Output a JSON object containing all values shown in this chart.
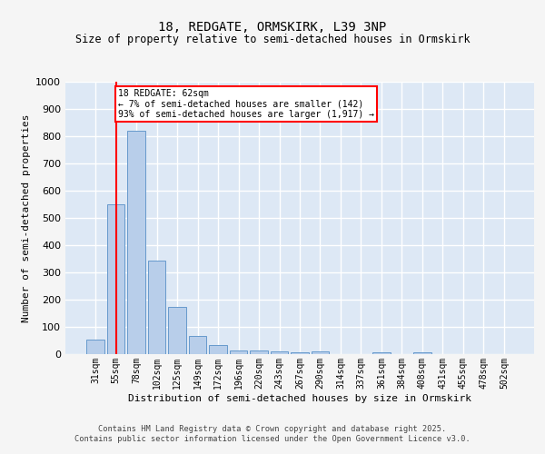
{
  "title": "18, REDGATE, ORMSKIRK, L39 3NP",
  "subtitle": "Size of property relative to semi-detached houses in Ormskirk",
  "xlabel": "Distribution of semi-detached houses by size in Ormskirk",
  "ylabel": "Number of semi-detached properties",
  "categories": [
    "31sqm",
    "55sqm",
    "78sqm",
    "102sqm",
    "125sqm",
    "149sqm",
    "172sqm",
    "196sqm",
    "220sqm",
    "243sqm",
    "267sqm",
    "290sqm",
    "314sqm",
    "337sqm",
    "361sqm",
    "384sqm",
    "408sqm",
    "431sqm",
    "455sqm",
    "478sqm",
    "502sqm"
  ],
  "values": [
    55,
    550,
    820,
    345,
    175,
    68,
    33,
    15,
    15,
    10,
    8,
    10,
    0,
    0,
    8,
    0,
    8,
    0,
    0,
    0,
    0
  ],
  "bar_color": "#b8ceea",
  "bar_edge_color": "#6699cc",
  "vline_x": 1,
  "annotation_text_line1": "18 REDGATE: 62sqm",
  "annotation_text_line2": "← 7% of semi-detached houses are smaller (142)",
  "annotation_text_line3": "93% of semi-detached houses are larger (1,917) →",
  "ylim": [
    0,
    1000
  ],
  "yticks": [
    0,
    100,
    200,
    300,
    400,
    500,
    600,
    700,
    800,
    900,
    1000
  ],
  "plot_bg_color": "#dde8f5",
  "fig_bg_color": "#f5f5f5",
  "grid_color": "#ffffff",
  "title_fontsize": 10,
  "subtitle_fontsize": 8.5,
  "ylabel_fontsize": 8,
  "xlabel_fontsize": 8,
  "tick_fontsize": 7,
  "footer_line1": "Contains HM Land Registry data © Crown copyright and database right 2025.",
  "footer_line2": "Contains public sector information licensed under the Open Government Licence v3.0."
}
